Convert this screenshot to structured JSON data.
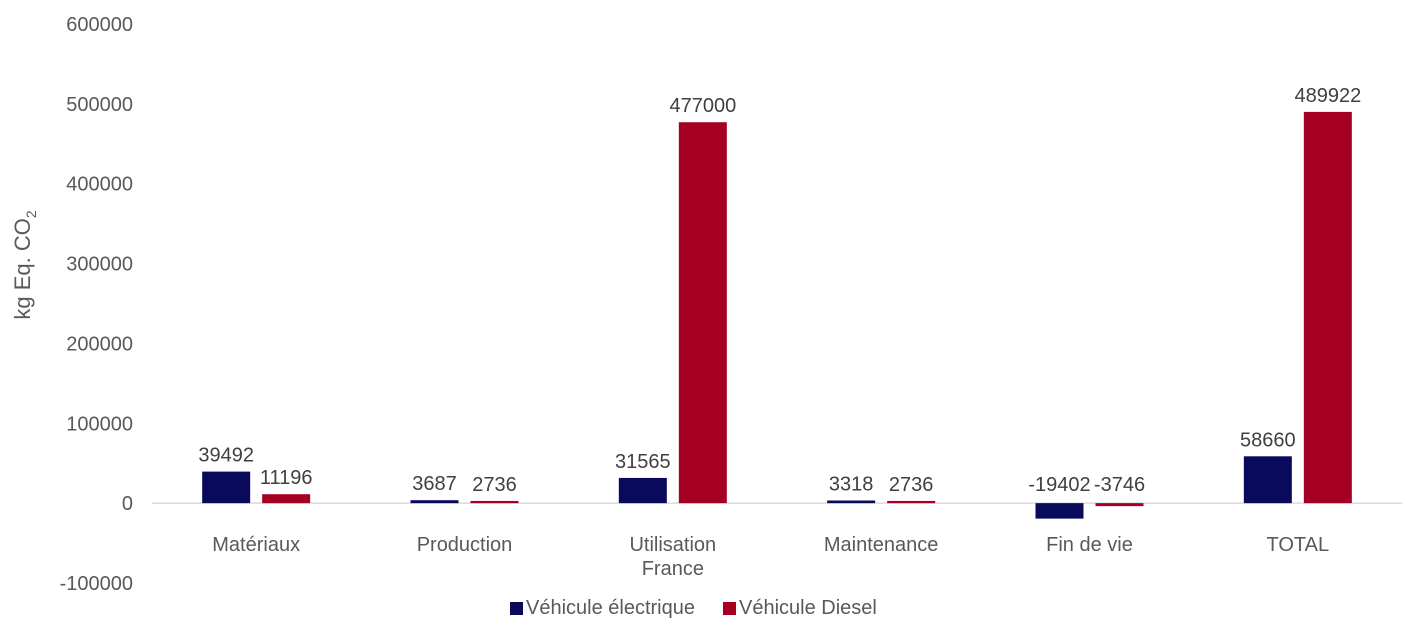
{
  "chart_data": {
    "type": "bar",
    "categories": [
      [
        "Matériaux"
      ],
      [
        "Production"
      ],
      [
        "Utilisation",
        "France"
      ],
      [
        "Maintenance"
      ],
      [
        "Fin de vie"
      ],
      [
        "TOTAL"
      ]
    ],
    "series": [
      {
        "name": "Véhicule électrique",
        "color": "#0a0a5c",
        "values": [
          39492,
          3687,
          31565,
          3318,
          -19402,
          58660
        ]
      },
      {
        "name": "Véhicule Diesel",
        "color": "#a50021",
        "values": [
          11196,
          2736,
          477000,
          2736,
          -3746,
          489922
        ]
      }
    ],
    "ylabel": "kg Eq. CO",
    "ylabel_sub": "2",
    "ylim": [
      -100000,
      600000
    ],
    "yticks": [
      600000,
      500000,
      400000,
      300000,
      200000,
      100000,
      0,
      -100000
    ],
    "legend_position": "bottom",
    "grid": false
  }
}
